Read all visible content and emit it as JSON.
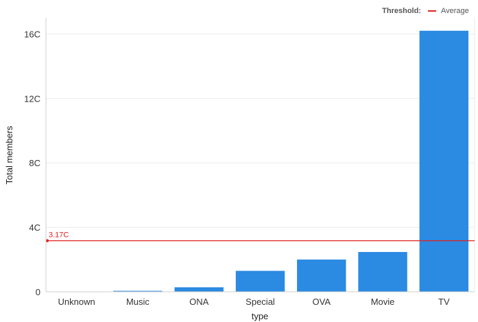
{
  "legend": {
    "title": "Threshold:",
    "items": [
      {
        "label": "Average",
        "color": "#e02020"
      }
    ]
  },
  "chart_data": {
    "type": "bar",
    "categories": [
      "Unknown",
      "Music",
      "ONA",
      "Special",
      "OVA",
      "Movie",
      "TV"
    ],
    "values": [
      0.02,
      0.06,
      0.28,
      1.3,
      2.0,
      2.47,
      16.2
    ],
    "xlabel": "type",
    "ylabel": "Total members",
    "ylim": [
      0,
      17
    ],
    "yticks": [
      {
        "value": 0,
        "label": "0"
      },
      {
        "value": 4,
        "label": "4C"
      },
      {
        "value": 8,
        "label": "8C"
      },
      {
        "value": 12,
        "label": "12C"
      },
      {
        "value": 16,
        "label": "16C"
      }
    ],
    "bar_color": "#2b8ae2",
    "grid": true,
    "threshold": {
      "name": "Average",
      "value": 3.17,
      "label": "3.17C",
      "color": "#e02020"
    },
    "legend_position": "top-right"
  }
}
